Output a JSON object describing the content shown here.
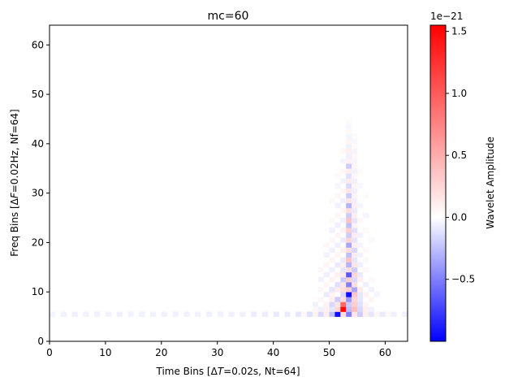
{
  "chart_data": {
    "type": "heatmap",
    "title": "mc=60",
    "xlabel_pre": "Time Bins [",
    "xlabel_delta": "Δ",
    "xlabel_var": "T",
    "xlabel_post": "=0.02s, Nt=64]",
    "ylabel_pre": "Freq Bins [",
    "ylabel_delta": "Δ",
    "ylabel_var": "F",
    "ylabel_post": "=0.02Hz, Nf=64]",
    "xlim": [
      0,
      64
    ],
    "ylim": [
      0,
      64
    ],
    "x_ticks": [
      "0",
      "10",
      "20",
      "30",
      "40",
      "50",
      "60"
    ],
    "y_ticks": [
      "0",
      "10",
      "20",
      "30",
      "40",
      "50",
      "60"
    ],
    "colorbar": {
      "label": "Wavelet Amplitude",
      "exponent": "1e−21",
      "vmin": -1.0,
      "vmax": 1.55,
      "colormap": "bwr",
      "ticks": [
        "−0.5",
        "0.0",
        "0.5",
        "1.0",
        "1.5"
      ],
      "tick_values": [
        -0.5,
        0.0,
        0.5,
        1.0,
        1.5
      ]
    },
    "cells": [
      [
        0,
        5,
        -0.04
      ],
      [
        1,
        5,
        0.0
      ],
      [
        2,
        5,
        -0.05
      ],
      [
        3,
        5,
        0.0
      ],
      [
        4,
        5,
        -0.06
      ],
      [
        5,
        5,
        0.0
      ],
      [
        6,
        5,
        -0.05
      ],
      [
        7,
        5,
        0.0
      ],
      [
        8,
        5,
        -0.06
      ],
      [
        9,
        5,
        0.0
      ],
      [
        10,
        5,
        -0.05
      ],
      [
        11,
        5,
        0.0
      ],
      [
        12,
        5,
        -0.06
      ],
      [
        13,
        5,
        0.0
      ],
      [
        14,
        5,
        -0.05
      ],
      [
        15,
        5,
        0.0
      ],
      [
        16,
        5,
        -0.06
      ],
      [
        17,
        5,
        0.0
      ],
      [
        18,
        5,
        -0.05
      ],
      [
        19,
        5,
        0.0
      ],
      [
        20,
        5,
        -0.06
      ],
      [
        21,
        5,
        0.0
      ],
      [
        22,
        5,
        -0.05
      ],
      [
        23,
        5,
        0.0
      ],
      [
        24,
        5,
        -0.06
      ],
      [
        25,
        5,
        0.0
      ],
      [
        26,
        5,
        -0.05
      ],
      [
        27,
        5,
        0.0
      ],
      [
        28,
        5,
        -0.06
      ],
      [
        29,
        5,
        0.0
      ],
      [
        30,
        5,
        -0.05
      ],
      [
        31,
        5,
        0.0
      ],
      [
        32,
        5,
        -0.06
      ],
      [
        33,
        5,
        0.0
      ],
      [
        34,
        5,
        -0.06
      ],
      [
        35,
        5,
        0.0
      ],
      [
        36,
        5,
        -0.07
      ],
      [
        37,
        5,
        0.0
      ],
      [
        38,
        5,
        -0.07
      ],
      [
        39,
        5,
        0.0
      ],
      [
        40,
        5,
        -0.08
      ],
      [
        41,
        5,
        0.0
      ],
      [
        42,
        5,
        -0.08
      ],
      [
        43,
        5,
        0.0
      ],
      [
        44,
        5,
        -0.1
      ],
      [
        45,
        5,
        0.05
      ],
      [
        46,
        5,
        -0.12
      ],
      [
        47,
        5,
        0.08
      ],
      [
        48,
        5,
        -0.15
      ],
      [
        49,
        5,
        0.1
      ],
      [
        50,
        5,
        -0.25
      ],
      [
        51,
        5,
        -0.95
      ],
      [
        52,
        5,
        0.2
      ],
      [
        53,
        5,
        -0.5
      ],
      [
        54,
        5,
        0.15
      ],
      [
        55,
        5,
        -0.2
      ],
      [
        56,
        5,
        0.1
      ],
      [
        57,
        5,
        -0.1
      ],
      [
        58,
        5,
        0.06
      ],
      [
        59,
        5,
        -0.08
      ],
      [
        60,
        5,
        0.04
      ],
      [
        61,
        5,
        -0.06
      ],
      [
        62,
        5,
        0.0
      ],
      [
        63,
        5,
        -0.05
      ],
      [
        47,
        6,
        0.05
      ],
      [
        48,
        6,
        -0.06
      ],
      [
        49,
        6,
        0.1
      ],
      [
        50,
        6,
        -0.1
      ],
      [
        51,
        6,
        0.25
      ],
      [
        52,
        6,
        1.5
      ],
      [
        53,
        6,
        -0.25
      ],
      [
        54,
        6,
        0.4
      ],
      [
        55,
        6,
        -0.15
      ],
      [
        56,
        6,
        0.1
      ],
      [
        57,
        6,
        -0.05
      ],
      [
        47,
        7,
        -0.05
      ],
      [
        49,
        7,
        0.08
      ],
      [
        50,
        7,
        -0.15
      ],
      [
        51,
        7,
        0.15
      ],
      [
        52,
        7,
        0.9
      ],
      [
        53,
        7,
        -0.2
      ],
      [
        54,
        7,
        0.3
      ],
      [
        55,
        7,
        -0.12
      ],
      [
        56,
        7,
        0.06
      ],
      [
        48,
        8,
        0.05
      ],
      [
        50,
        8,
        0.1
      ],
      [
        51,
        8,
        -0.2
      ],
      [
        52,
        8,
        0.2
      ],
      [
        53,
        8,
        -0.4
      ],
      [
        54,
        8,
        0.25
      ],
      [
        55,
        8,
        -0.1
      ],
      [
        57,
        8,
        0.06
      ],
      [
        49,
        9,
        -0.08
      ],
      [
        50,
        9,
        0.06
      ],
      [
        52,
        9,
        -0.15
      ],
      [
        53,
        9,
        -0.95
      ],
      [
        54,
        9,
        0.35
      ],
      [
        55,
        9,
        -0.1
      ],
      [
        56,
        9,
        0.08
      ],
      [
        58,
        9,
        -0.04
      ],
      [
        48,
        10,
        0.05
      ],
      [
        50,
        10,
        -0.1
      ],
      [
        51,
        10,
        0.12
      ],
      [
        52,
        10,
        0.2
      ],
      [
        53,
        10,
        0.3
      ],
      [
        54,
        10,
        -0.35
      ],
      [
        55,
        10,
        0.12
      ],
      [
        57,
        10,
        -0.05
      ],
      [
        49,
        11,
        0.06
      ],
      [
        51,
        11,
        -0.12
      ],
      [
        52,
        11,
        0.15
      ],
      [
        53,
        11,
        -0.5
      ],
      [
        54,
        11,
        0.2
      ],
      [
        56,
        11,
        -0.06
      ],
      [
        48,
        12,
        -0.05
      ],
      [
        50,
        12,
        0.08
      ],
      [
        52,
        12,
        -0.2
      ],
      [
        53,
        12,
        0.3
      ],
      [
        54,
        12,
        -0.15
      ],
      [
        55,
        12,
        0.1
      ],
      [
        57,
        12,
        0.04
      ],
      [
        49,
        13,
        -0.06
      ],
      [
        51,
        13,
        0.1
      ],
      [
        52,
        13,
        0.12
      ],
      [
        53,
        13,
        -0.65
      ],
      [
        54,
        13,
        0.25
      ],
      [
        55,
        13,
        -0.08
      ],
      [
        48,
        14,
        0.05
      ],
      [
        50,
        14,
        -0.06
      ],
      [
        52,
        14,
        -0.1
      ],
      [
        53,
        14,
        0.2
      ],
      [
        54,
        14,
        -0.2
      ],
      [
        56,
        14,
        0.05
      ],
      [
        49,
        15,
        0.06
      ],
      [
        51,
        15,
        -0.08
      ],
      [
        52,
        15,
        0.1
      ],
      [
        53,
        15,
        -0.3
      ],
      [
        54,
        15,
        0.15
      ],
      [
        55,
        15,
        -0.06
      ],
      [
        50,
        16,
        0.06
      ],
      [
        52,
        16,
        -0.08
      ],
      [
        53,
        16,
        0.35
      ],
      [
        54,
        16,
        -0.1
      ],
      [
        56,
        16,
        0.04
      ],
      [
        49,
        17,
        -0.05
      ],
      [
        51,
        17,
        0.06
      ],
      [
        53,
        17,
        -0.25
      ],
      [
        54,
        17,
        0.12
      ],
      [
        55,
        17,
        -0.05
      ],
      [
        50,
        18,
        -0.06
      ],
      [
        52,
        18,
        0.1
      ],
      [
        53,
        18,
        0.2
      ],
      [
        54,
        18,
        -0.15
      ],
      [
        56,
        18,
        0.05
      ],
      [
        49,
        19,
        0.05
      ],
      [
        51,
        19,
        -0.06
      ],
      [
        53,
        19,
        -0.35
      ],
      [
        54,
        19,
        0.1
      ],
      [
        55,
        19,
        -0.04
      ],
      [
        50,
        20,
        0.05
      ],
      [
        52,
        20,
        -0.08
      ],
      [
        53,
        20,
        0.25
      ],
      [
        54,
        20,
        -0.1
      ],
      [
        57,
        20,
        0.04
      ],
      [
        51,
        21,
        0.06
      ],
      [
        53,
        21,
        -0.2
      ],
      [
        54,
        21,
        0.12
      ],
      [
        55,
        21,
        -0.05
      ],
      [
        50,
        22,
        -0.05
      ],
      [
        52,
        22,
        0.08
      ],
      [
        53,
        22,
        0.3
      ],
      [
        54,
        22,
        -0.12
      ],
      [
        56,
        22,
        0.04
      ],
      [
        51,
        23,
        -0.06
      ],
      [
        53,
        23,
        -0.25
      ],
      [
        54,
        23,
        0.08
      ],
      [
        50,
        24,
        0.04
      ],
      [
        52,
        24,
        -0.06
      ],
      [
        53,
        24,
        0.35
      ],
      [
        54,
        24,
        -0.1
      ],
      [
        55,
        24,
        0.05
      ],
      [
        51,
        25,
        0.05
      ],
      [
        53,
        25,
        -0.2
      ],
      [
        54,
        25,
        0.1
      ],
      [
        56,
        25,
        -0.04
      ],
      [
        52,
        26,
        0.06
      ],
      [
        53,
        26,
        0.2
      ],
      [
        54,
        26,
        -0.08
      ],
      [
        51,
        27,
        -0.05
      ],
      [
        53,
        27,
        -0.3
      ],
      [
        54,
        27,
        0.1
      ],
      [
        55,
        27,
        -0.04
      ],
      [
        50,
        28,
        0.04
      ],
      [
        52,
        28,
        -0.06
      ],
      [
        53,
        28,
        0.15
      ],
      [
        54,
        28,
        -0.06
      ],
      [
        51,
        29,
        0.05
      ],
      [
        53,
        29,
        -0.2
      ],
      [
        54,
        29,
        0.08
      ],
      [
        56,
        29,
        0.03
      ],
      [
        52,
        30,
        0.05
      ],
      [
        53,
        30,
        0.15
      ],
      [
        54,
        30,
        -0.06
      ],
      [
        51,
        31,
        -0.04
      ],
      [
        53,
        31,
        -0.15
      ],
      [
        54,
        31,
        0.06
      ],
      [
        55,
        31,
        -0.03
      ],
      [
        52,
        32,
        -0.05
      ],
      [
        53,
        32,
        0.12
      ],
      [
        54,
        32,
        -0.06
      ],
      [
        51,
        33,
        0.04
      ],
      [
        53,
        33,
        -0.12
      ],
      [
        54,
        33,
        0.05
      ],
      [
        52,
        34,
        0.05
      ],
      [
        53,
        34,
        0.1
      ],
      [
        54,
        34,
        -0.05
      ],
      [
        55,
        34,
        0.03
      ],
      [
        53,
        35,
        -0.2
      ],
      [
        54,
        35,
        0.06
      ],
      [
        52,
        36,
        -0.04
      ],
      [
        53,
        36,
        0.08
      ],
      [
        54,
        36,
        -0.04
      ],
      [
        53,
        37,
        -0.06
      ],
      [
        54,
        37,
        0.05
      ],
      [
        52,
        38,
        0.04
      ],
      [
        53,
        38,
        0.1
      ],
      [
        54,
        38,
        -0.04
      ],
      [
        53,
        39,
        -0.05
      ],
      [
        54,
        39,
        0.04
      ],
      [
        53,
        40,
        0.06
      ],
      [
        54,
        40,
        -0.03
      ],
      [
        53,
        41,
        -0.04
      ],
      [
        54,
        41,
        0.03
      ],
      [
        53,
        42,
        0.04
      ],
      [
        53,
        43,
        -0.03
      ],
      [
        53,
        44,
        0.03
      ]
    ]
  }
}
